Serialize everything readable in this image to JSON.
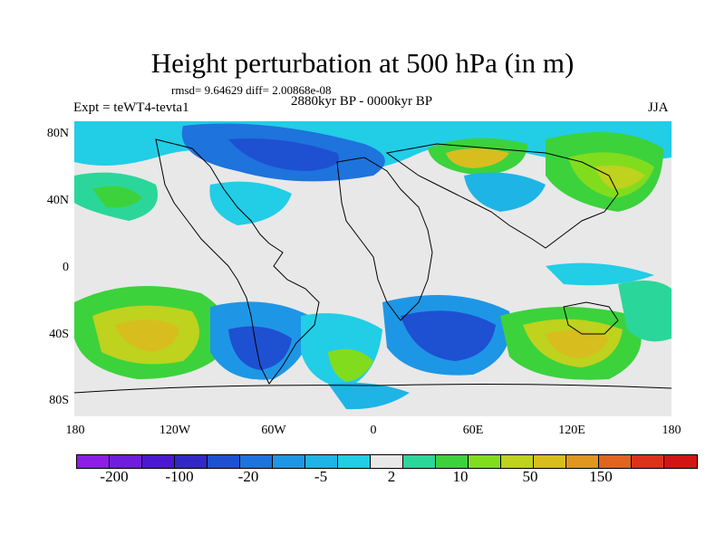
{
  "title": "Height perturbation at 500 hPa (in m)",
  "stats": "rmsd= 9.64629 diff= 2.00868e-08",
  "period": "2880kyr BP - 0000kyr BP",
  "experiment": "Expt = teWT4-tevta1",
  "season": "JJA",
  "lat_ticks": [
    "80N",
    "40N",
    "0",
    "40S",
    "80S"
  ],
  "lon_ticks": [
    "180",
    "120W",
    "60W",
    "0",
    "60E",
    "120E",
    "180"
  ],
  "colorbar": {
    "colors": [
      "#8c1ee6",
      "#6e1edc",
      "#4b19d2",
      "#3228c8",
      "#1e50d2",
      "#1e73dc",
      "#1e96e6",
      "#1eb4e6",
      "#22cde6",
      "#e8e8e8",
      "#2bd69a",
      "#3cd23c",
      "#82dc1e",
      "#bed21e",
      "#d7be1e",
      "#e1961e",
      "#e1641e",
      "#dc3219",
      "#d21414"
    ],
    "labels": [
      "-200",
      "-100",
      "-20",
      "-5",
      "2",
      "10",
      "50",
      "150"
    ]
  }
}
